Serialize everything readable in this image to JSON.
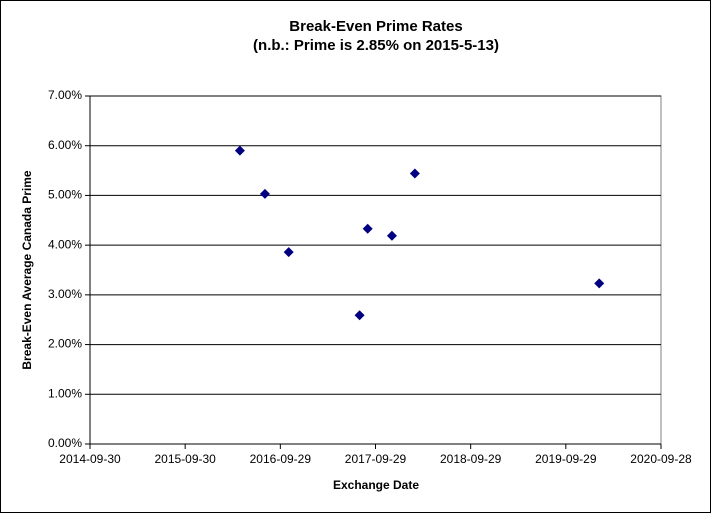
{
  "chart_data": {
    "type": "scatter",
    "title": "Break-Even Prime Rates",
    "subtitle": "(n.b.: Prime is 2.85% on 2015-5-13)",
    "x_label": "Exchange Date",
    "y_label": "Break-Even Average Canada Prime",
    "x": [
      "2016-04-27",
      "2016-08-01",
      "2016-10-31",
      "2017-07-30",
      "2017-08-30",
      "2017-12-01",
      "2018-02-27",
      "2020-02-04"
    ],
    "values": [
      5.9,
      5.03,
      3.86,
      2.59,
      4.33,
      4.19,
      5.44,
      3.23
    ],
    "color": "#000080",
    "xlim": [
      "2014-09-30",
      "2020-09-28"
    ],
    "xticks": [
      "2014-09-30",
      "2015-09-30",
      "2016-09-29",
      "2017-09-29",
      "2018-09-29",
      "2019-09-29",
      "2020-09-28"
    ],
    "ylim": [
      0,
      7
    ],
    "yticks": [
      {
        "value": 0,
        "label": "0.00%"
      },
      {
        "value": 1,
        "label": "1.00%"
      },
      {
        "value": 2,
        "label": "2.00%"
      },
      {
        "value": 3,
        "label": "3.00%"
      },
      {
        "value": 4,
        "label": "4.00%"
      },
      {
        "value": 5,
        "label": "5.00%"
      },
      {
        "value": 6,
        "label": "6.00%"
      },
      {
        "value": 7,
        "label": "7.00%"
      }
    ],
    "grid": true
  }
}
